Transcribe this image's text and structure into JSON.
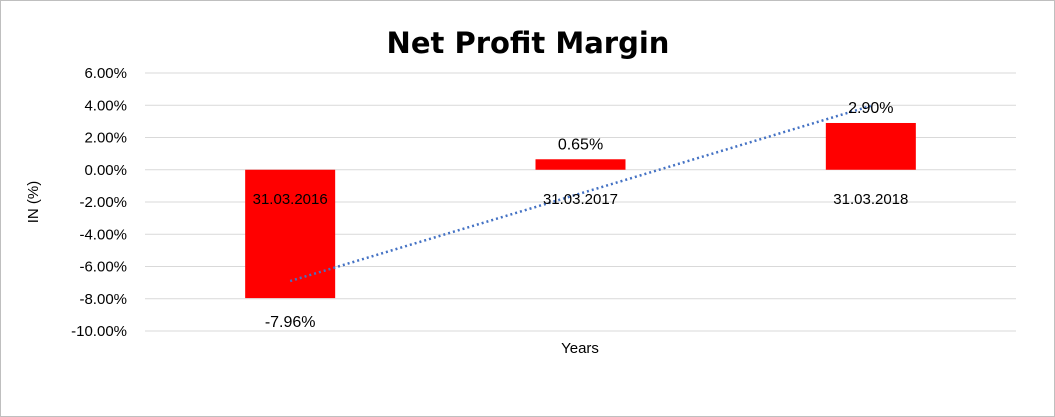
{
  "chart_data": {
    "type": "bar",
    "title": "Net Profit Margin",
    "xlabel": "Years",
    "ylabel": "IN (%)",
    "categories": [
      "31.03.2016",
      "31.03.2017",
      "31.03.2018"
    ],
    "series": [
      {
        "values": [
          -7.96,
          0.65,
          2.9
        ],
        "data_labels": [
          "-7.96%",
          "0.65%",
          "2.90%"
        ],
        "color": "#ff0000"
      }
    ],
    "trendline": {
      "type": "linear",
      "style": "dotted",
      "color": "#4472c4"
    },
    "ylim": [
      -10,
      6
    ],
    "yticks": [
      6,
      4,
      2,
      0,
      -2,
      -4,
      -6,
      -8,
      -10
    ],
    "ytick_labels": [
      "6.00%",
      "4.00%",
      "2.00%",
      "0.00%",
      "-2.00%",
      "-4.00%",
      "-6.00%",
      "-8.00%",
      "-10.00%"
    ],
    "grid": true,
    "legend": "none",
    "colors": {
      "gridline": "#d9d9d9",
      "bar": "#ff0000",
      "trendline": "#4472c4"
    }
  }
}
